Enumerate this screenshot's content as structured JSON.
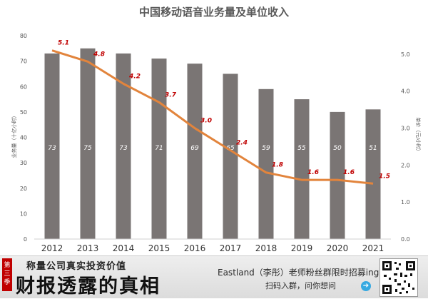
{
  "chart_data": {
    "type": "bar+line",
    "title": "中国移动语音业务量及单位收入",
    "categories": [
      "2012",
      "2013",
      "2014",
      "2015",
      "2016",
      "2017",
      "2018",
      "2019",
      "2020",
      "2021"
    ],
    "series": [
      {
        "name": "业务量",
        "kind": "bar",
        "axis": "left",
        "values": [
          73,
          75,
          73,
          71,
          69,
          65,
          59,
          55,
          50,
          51
        ],
        "labels": [
          "73",
          "75",
          "73",
          "71",
          "69",
          "65",
          "59",
          "55",
          "50",
          "51"
        ],
        "color": "#7a7574"
      },
      {
        "name": "单价",
        "kind": "line",
        "axis": "right",
        "values": [
          5.1,
          4.8,
          4.2,
          3.7,
          3.0,
          2.4,
          1.8,
          1.6,
          1.6,
          1.5
        ],
        "labels": [
          "5.1",
          "4.8",
          "4.2",
          "3.7",
          "3.0",
          "2.4",
          "1.8",
          "1.6",
          "1.6",
          "1.5"
        ],
        "color": "#e2843c",
        "label_color": "#c00000"
      }
    ],
    "ylabel_left": "业务量（十亿小时）",
    "ylabel_right": "单价（元/小时）",
    "ylim_left": [
      0,
      80
    ],
    "yticks_left": [
      "0",
      "10",
      "20",
      "30",
      "40",
      "50",
      "60",
      "70",
      "80"
    ],
    "ylim_right": [
      0,
      5.5
    ],
    "yticks_right": [
      "0.0",
      "1.0",
      "2.0",
      "3.0",
      "4.0",
      "5.0"
    ],
    "grid": false,
    "legend": "none"
  },
  "banner": {
    "badge": "第三季",
    "subtitle": "称量公司真实投资价值",
    "brand": "财报透露的真相",
    "promo": "Eastland（李彤）老师粉丝群限时招募ing",
    "cta": "扫码入群，问你想问",
    "arrow_icon": "arrow-right-icon",
    "qr_icon": "qr-code-icon"
  }
}
